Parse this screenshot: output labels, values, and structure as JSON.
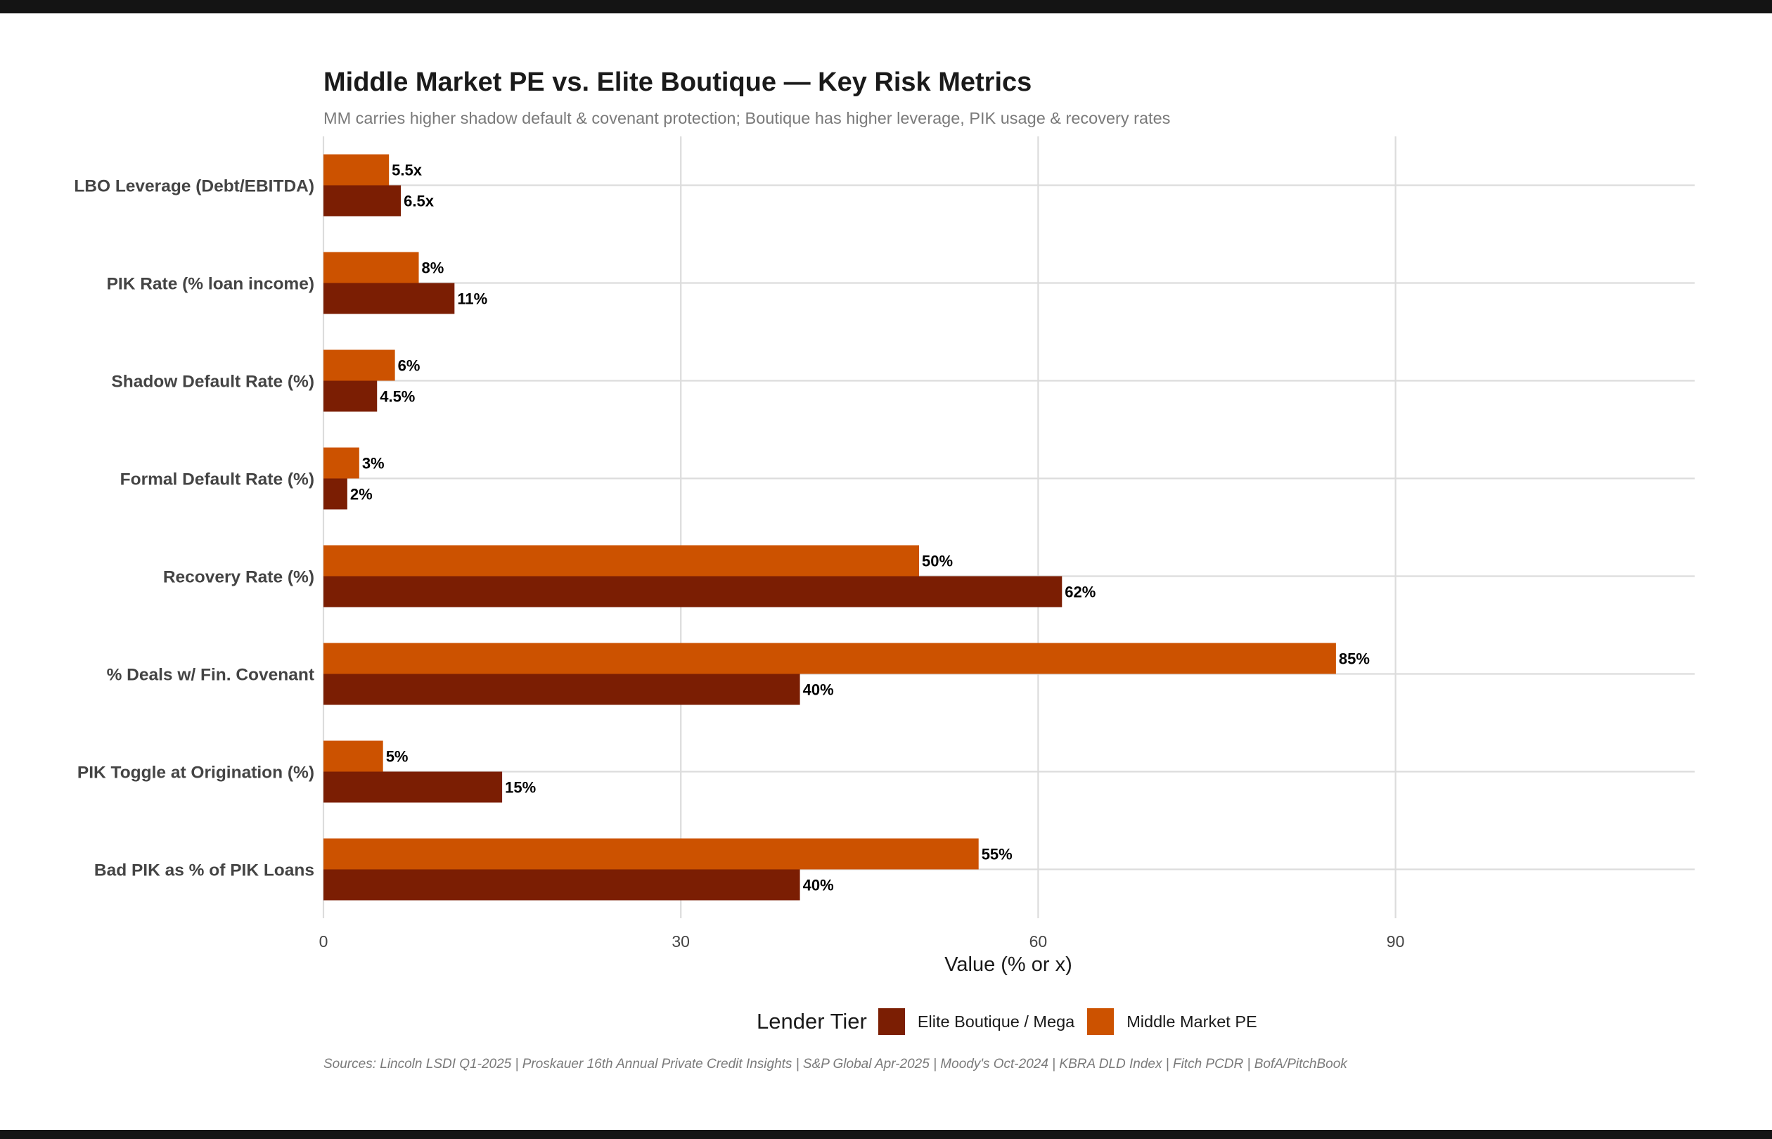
{
  "title": "Middle Market PE vs. Elite Boutique — Key Risk Metrics",
  "subtitle": "MM carries higher shadow default & covenant protection; Boutique has higher leverage, PIK usage & recovery rates",
  "sources": "Sources: Lincoln LSDI Q1-2025 | Proskauer 16th Annual Private Credit Insights | S&P Global Apr-2025 | Moody's Oct-2024 | KBRA DLD Index | Fitch PCDR | BofA/PitchBook",
  "colors": {
    "elite": "#7b1e03",
    "mm": "#cc5200",
    "grid": "#dcdcdc",
    "axis_text": "#444444",
    "label_text": "#000000"
  },
  "chart_data": {
    "type": "bar",
    "orientation": "horizontal",
    "title": "Middle Market PE vs. Elite Boutique — Key Risk Metrics",
    "xlabel": "Value (% or x)",
    "ylabel": "",
    "xlim": [
      0,
      115
    ],
    "xticks": [
      0,
      30,
      60,
      90
    ],
    "grid": true,
    "legend_title": "Lender Tier",
    "legend_position": "bottom",
    "categories": [
      "LBO Leverage (Debt/EBITDA)",
      "PIK Rate (% loan income)",
      "Shadow Default Rate (%)",
      "Formal Default Rate (%)",
      "Recovery Rate (%)",
      "% Deals w/ Fin. Covenant",
      "PIK Toggle at Origination (%)",
      "Bad PIK as % of PIK Loans"
    ],
    "series": [
      {
        "name": "Elite Boutique / Mega",
        "values": [
          6.5,
          11,
          4.5,
          2,
          62,
          40,
          15,
          40
        ],
        "labels": [
          "6.5x",
          "11%",
          "4.5%",
          "2%",
          "62%",
          "40%",
          "15%",
          "40%"
        ]
      },
      {
        "name": "Middle Market PE",
        "values": [
          5.5,
          8,
          6,
          3,
          50,
          85,
          5,
          55
        ],
        "labels": [
          "5.5x",
          "8%",
          "6%",
          "3%",
          "50%",
          "85%",
          "5%",
          "55%"
        ]
      }
    ]
  }
}
